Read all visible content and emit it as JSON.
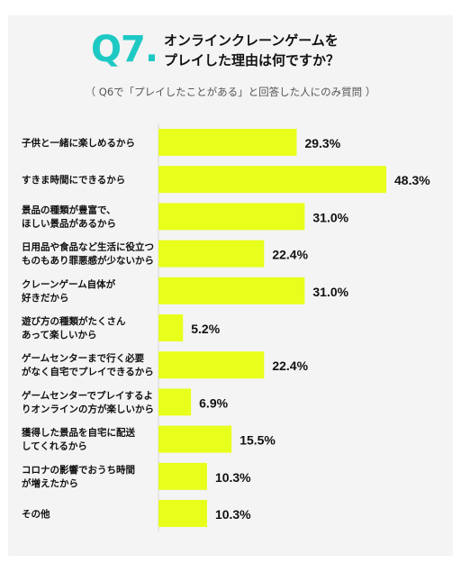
{
  "header": {
    "question_number": "Q7.",
    "title_line1": "オンラインクレーンゲームを",
    "title_line2": "プレイした理由は何ですか？",
    "subtitle": "（ Q6で「プレイしたことがある」と回答した人にのみ質問 ）"
  },
  "colors": {
    "bar": "#e8ff1c",
    "accent": "#1ec9c4",
    "background": "#f4f4f4"
  },
  "chart_data": {
    "type": "bar",
    "orientation": "horizontal",
    "unit": "%",
    "xlim": [
      0,
      50
    ],
    "grid": false,
    "categories": [
      [
        "子供と一緒に楽しめるから"
      ],
      [
        "すきま時間にできるから"
      ],
      [
        "景品の種類が豊富で、",
        "ほしい景品があるから"
      ],
      [
        "日用品や食品など生活に役立つ",
        "ものもあり罪悪感が少ないから"
      ],
      [
        "クレーンゲーム自体が",
        "好きだから"
      ],
      [
        "遊び方の種類がたくさん",
        "あって楽しいから"
      ],
      [
        "ゲームセンターまで行く必要",
        "がなく自宅でプレイできるから"
      ],
      [
        "ゲームセンターでプレイするよ",
        "りオンラインの方が楽しいから"
      ],
      [
        "獲得した景品を自宅に配送",
        "してくれるから"
      ],
      [
        "コロナの影響でおうち時間",
        "が増えたから"
      ],
      [
        "その他"
      ]
    ],
    "values": [
      29.3,
      48.3,
      31.0,
      22.4,
      31.0,
      5.2,
      22.4,
      6.9,
      15.5,
      10.3,
      10.3
    ],
    "value_labels": [
      "29.3%",
      "48.3%",
      "31.0%",
      "22.4%",
      "31.0%",
      "5.2%",
      "22.4%",
      "6.9%",
      "15.5%",
      "10.3%",
      "10.3%"
    ]
  }
}
